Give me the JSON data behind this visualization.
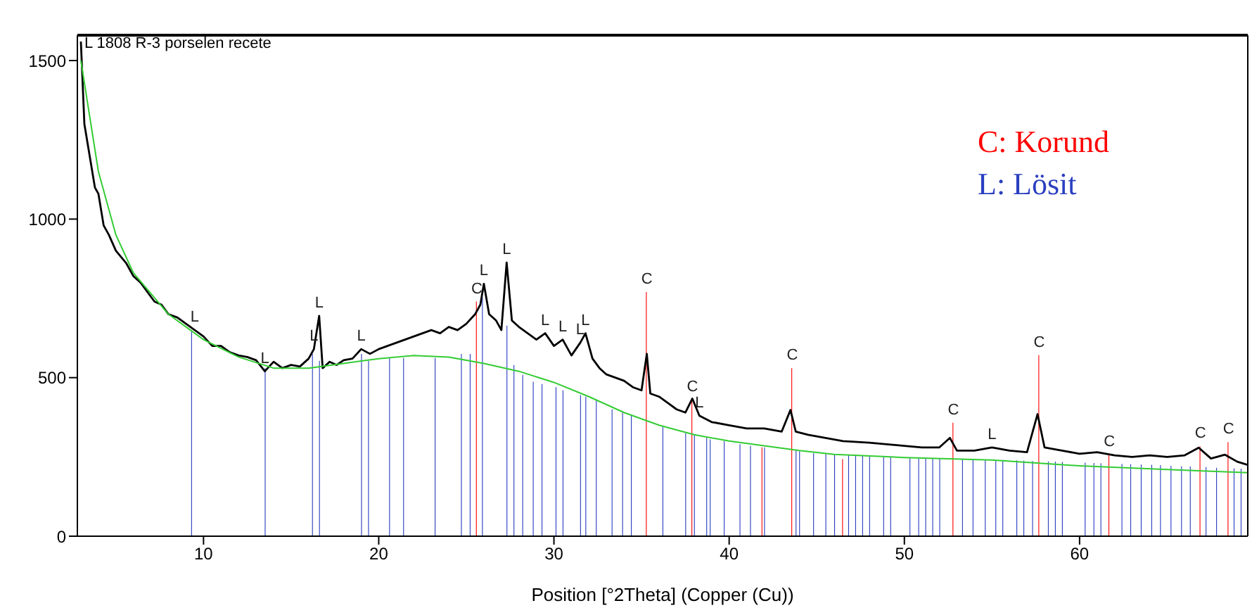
{
  "chart_data": {
    "type": "line",
    "title": "L 1808  R-3 porselen recete",
    "xlabel": "Position [°2Theta] (Copper (Cu))",
    "xlim": [
      2.8,
      69.6
    ],
    "xticks": [
      10,
      20,
      30,
      40,
      50,
      60
    ],
    "ylim": [
      0,
      1580
    ],
    "yticks": [
      0,
      500,
      1000,
      1500
    ],
    "grid": false,
    "marker": "none",
    "line_style": "solid",
    "series": [
      {
        "color": "#000000",
        "x": [
          3.0,
          3.2,
          3.5,
          3.8,
          4.0,
          4.3,
          4.6,
          5.0,
          5.3,
          5.6,
          6.0,
          6.4,
          6.8,
          7.2,
          7.6,
          8.0,
          8.5,
          9.0,
          9.5,
          10.0,
          10.5,
          11.0,
          11.5,
          12.0,
          12.5,
          13.0,
          13.5,
          14.0,
          14.5,
          15.0,
          15.5,
          16.0,
          16.3,
          16.6,
          16.8,
          17.2,
          17.6,
          18.0,
          18.5,
          19.0,
          19.5,
          20.0,
          20.5,
          21.0,
          21.5,
          22.0,
          22.5,
          23.0,
          23.5,
          24.0,
          24.5,
          25.0,
          25.5,
          25.8,
          26.0,
          26.3,
          26.7,
          27.0,
          27.3,
          27.6,
          28.0,
          28.5,
          29.0,
          29.5,
          30.0,
          30.5,
          31.0,
          31.5,
          31.8,
          32.2,
          32.6,
          33.0,
          33.5,
          34.0,
          34.5,
          35.0,
          35.3,
          35.5,
          36.0,
          36.5,
          37.0,
          37.5,
          37.9,
          38.3,
          39.0,
          40.0,
          41.0,
          42.0,
          43.0,
          43.5,
          43.8,
          44.5,
          45.5,
          46.5,
          48.0,
          49.0,
          50.0,
          51.0,
          52.0,
          52.6,
          53.0,
          54.0,
          55.0,
          56.0,
          57.0,
          57.6,
          58.0,
          59.0,
          60.0,
          61.0,
          62.0,
          63.0,
          64.0,
          65.0,
          66.0,
          66.8,
          67.5,
          68.3,
          69.0,
          69.6
        ],
        "values": [
          1560,
          1300,
          1200,
          1100,
          1080,
          980,
          950,
          900,
          880,
          860,
          820,
          800,
          770,
          740,
          730,
          700,
          690,
          670,
          650,
          630,
          600,
          600,
          580,
          570,
          565,
          555,
          520,
          550,
          530,
          540,
          535,
          560,
          590,
          695,
          530,
          550,
          540,
          555,
          560,
          590,
          575,
          590,
          600,
          610,
          620,
          630,
          640,
          650,
          640,
          660,
          650,
          670,
          700,
          730,
          796,
          700,
          680,
          650,
          863,
          680,
          660,
          640,
          620,
          640,
          600,
          620,
          570,
          610,
          640,
          560,
          530,
          510,
          500,
          490,
          470,
          460,
          575,
          450,
          440,
          420,
          400,
          390,
          434,
          380,
          360,
          350,
          340,
          340,
          330,
          398,
          330,
          320,
          310,
          300,
          295,
          290,
          285,
          280,
          280,
          310,
          270,
          270,
          280,
          270,
          265,
          385,
          280,
          270,
          260,
          265,
          255,
          250,
          255,
          250,
          255,
          279,
          245,
          257,
          235,
          225
        ]
      },
      {
        "color": "#33cc33",
        "x": [
          3,
          4,
          5,
          6,
          8,
          10,
          12,
          14,
          16,
          18,
          20,
          22,
          24,
          26,
          28,
          30,
          32,
          34,
          36,
          38,
          40,
          42,
          44,
          46,
          50,
          55,
          60,
          65,
          69.6
        ],
        "values": [
          1500,
          1150,
          950,
          830,
          700,
          620,
          565,
          530,
          530,
          545,
          560,
          570,
          565,
          545,
          520,
          485,
          440,
          390,
          350,
          320,
          300,
          285,
          270,
          258,
          248,
          240,
          222,
          210,
          200
        ]
      },
      {
        "name": "C: Korund",
        "type": "bar",
        "color": "#ff0000",
        "x": [
          25.6,
          35.3,
          37.9,
          41.9,
          43.6,
          46.5,
          52.8,
          57.7,
          61.7,
          66.9,
          68.5
        ],
        "values": [
          740,
          770,
          430,
          280,
          530,
          243,
          358,
          571,
          257,
          283,
          297
        ]
      },
      {
        "name": "L: Lösit",
        "type": "bar",
        "color": "#2a3fc0",
        "x": [
          9.3,
          13.5,
          16.2,
          16.6,
          19.0,
          19.4,
          20.6,
          21.4,
          23.2,
          24.7,
          25.2,
          25.9,
          27.3,
          27.7,
          28.2,
          28.8,
          29.3,
          30.1,
          30.5,
          31.5,
          31.8,
          32.4,
          33.3,
          33.9,
          34.4,
          36.2,
          37.5,
          38.0,
          38.7,
          38.9,
          39.7,
          40.6,
          41.2,
          42.0,
          43.8,
          44.0,
          44.8,
          45.5,
          46.0,
          46.8,
          47.2,
          47.6,
          48.0,
          48.8,
          49.2,
          50.3,
          50.8,
          51.2,
          51.6,
          52.0,
          53.3,
          53.9,
          54.6,
          55.2,
          55.6,
          56.4,
          56.8,
          57.3,
          58.2,
          58.6,
          59.0,
          60.3,
          60.8,
          61.2,
          62.4,
          62.9,
          63.5,
          64.1,
          64.6,
          65.2,
          65.8,
          66.3,
          67.2,
          67.8,
          68.8,
          69.2
        ],
        "values": [
          650,
          530,
          575,
          553,
          575,
          553,
          562,
          562,
          562,
          575,
          575,
          752,
          664,
          540,
          509,
          487,
          480,
          470,
          460,
          445,
          440,
          430,
          400,
          390,
          380,
          345,
          325,
          320,
          310,
          305,
          300,
          290,
          285,
          280,
          270,
          268,
          262,
          260,
          258,
          255,
          254,
          253,
          252,
          250,
          250,
          248,
          247,
          246,
          245,
          244,
          243,
          242,
          241,
          240,
          240,
          239,
          238,
          237,
          236,
          235,
          234,
          232,
          231,
          230,
          228,
          227,
          226,
          225,
          224,
          222,
          221,
          220,
          218,
          216,
          214,
          213
        ]
      }
    ],
    "annotations": [
      {
        "text": "L",
        "x": 9.5,
        "y": 650
      },
      {
        "text": "L",
        "x": 13.5,
        "y": 520
      },
      {
        "text": "L",
        "x": 16.3,
        "y": 590
      },
      {
        "text": "L",
        "x": 16.6,
        "y": 695
      },
      {
        "text": "L",
        "x": 19.0,
        "y": 590
      },
      {
        "text": "C",
        "x": 25.6,
        "y": 740
      },
      {
        "text": "L",
        "x": 26.0,
        "y": 796
      },
      {
        "text": "L",
        "x": 27.3,
        "y": 863
      },
      {
        "text": "L",
        "x": 29.5,
        "y": 640
      },
      {
        "text": "L",
        "x": 30.5,
        "y": 620
      },
      {
        "text": "L",
        "x": 31.5,
        "y": 610
      },
      {
        "text": "L",
        "x": 31.8,
        "y": 640
      },
      {
        "text": "C",
        "x": 35.3,
        "y": 770
      },
      {
        "text": "C",
        "x": 37.9,
        "y": 430
      },
      {
        "text": "L",
        "x": 38.3,
        "y": 380
      },
      {
        "text": "C",
        "x": 43.6,
        "y": 530
      },
      {
        "text": "C",
        "x": 52.8,
        "y": 358
      },
      {
        "text": "L",
        "x": 55.0,
        "y": 280
      },
      {
        "text": "C",
        "x": 57.7,
        "y": 571
      },
      {
        "text": "C",
        "x": 61.7,
        "y": 257
      },
      {
        "text": "C",
        "x": 66.9,
        "y": 283
      },
      {
        "text": "C",
        "x": 68.5,
        "y": 297
      }
    ]
  }
}
